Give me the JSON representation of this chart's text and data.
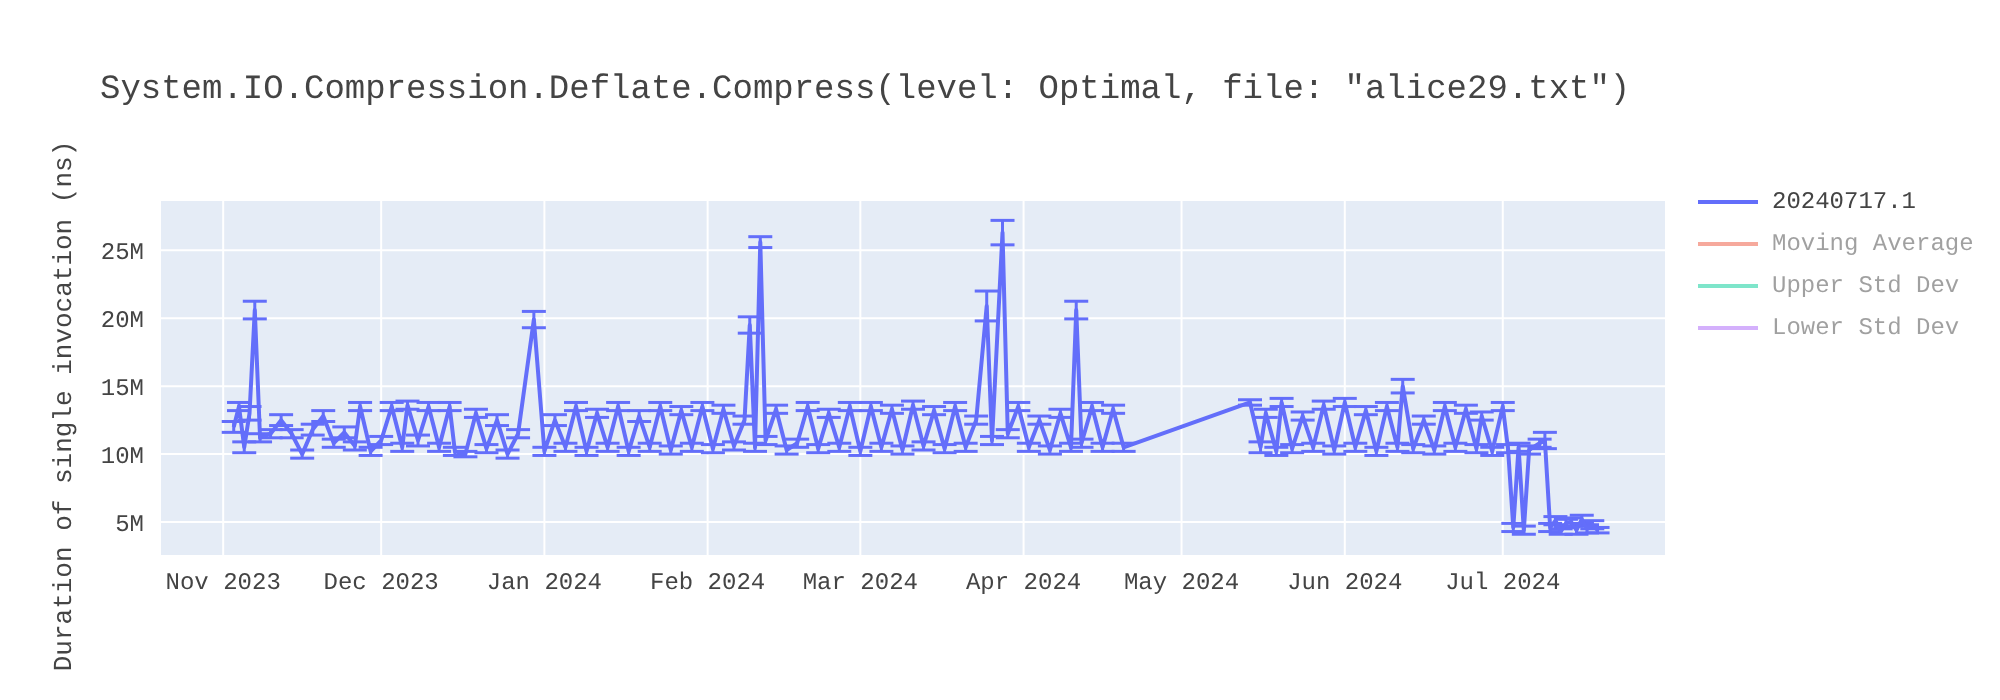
{
  "chart_data": {
    "type": "line",
    "title": "System.IO.Compression.Deflate.Compress(level: Optimal, file: \"alice29.txt\")",
    "ylabel": "Duration of single invocation (ns)",
    "x": [
      "2023-11-03",
      "2023-11-04",
      "2023-11-05",
      "2023-11-06",
      "2023-11-07",
      "2023-11-08",
      "2023-11-10",
      "2023-11-12",
      "2023-11-14",
      "2023-11-16",
      "2023-11-18",
      "2023-11-20",
      "2023-11-22",
      "2023-11-24",
      "2023-11-26",
      "2023-11-27",
      "2023-11-29",
      "2023-12-01",
      "2023-12-03",
      "2023-12-05",
      "2023-12-06",
      "2023-12-08",
      "2023-12-10",
      "2023-12-12",
      "2023-12-14",
      "2023-12-15",
      "2023-12-17",
      "2023-12-19",
      "2023-12-21",
      "2023-12-23",
      "2023-12-25",
      "2023-12-27",
      "2023-12-30",
      "2024-01-01",
      "2024-01-03",
      "2024-01-05",
      "2024-01-07",
      "2024-01-09",
      "2024-01-11",
      "2024-01-13",
      "2024-01-15",
      "2024-01-17",
      "2024-01-19",
      "2024-01-21",
      "2024-01-23",
      "2024-01-25",
      "2024-01-27",
      "2024-01-29",
      "2024-01-31",
      "2024-02-02",
      "2024-02-04",
      "2024-02-06",
      "2024-02-08",
      "2024-02-09",
      "2024-02-10",
      "2024-02-11",
      "2024-02-12",
      "2024-02-14",
      "2024-02-16",
      "2024-02-18",
      "2024-02-20",
      "2024-02-22",
      "2024-02-24",
      "2024-02-26",
      "2024-02-28",
      "2024-03-01",
      "2024-03-03",
      "2024-03-05",
      "2024-03-07",
      "2024-03-09",
      "2024-03-11",
      "2024-03-13",
      "2024-03-15",
      "2024-03-17",
      "2024-03-19",
      "2024-03-21",
      "2024-03-23",
      "2024-03-25",
      "2024-03-26",
      "2024-03-28",
      "2024-03-29",
      "2024-03-31",
      "2024-04-02",
      "2024-04-04",
      "2024-04-06",
      "2024-04-08",
      "2024-04-10",
      "2024-04-11",
      "2024-04-12",
      "2024-04-14",
      "2024-04-16",
      "2024-04-18",
      "2024-04-20",
      "2024-05-14",
      "2024-05-16",
      "2024-05-17",
      "2024-05-19",
      "2024-05-20",
      "2024-05-22",
      "2024-05-24",
      "2024-05-26",
      "2024-05-28",
      "2024-05-30",
      "2024-06-01",
      "2024-06-03",
      "2024-06-05",
      "2024-06-07",
      "2024-06-09",
      "2024-06-11",
      "2024-06-12",
      "2024-06-14",
      "2024-06-16",
      "2024-06-18",
      "2024-06-20",
      "2024-06-22",
      "2024-06-24",
      "2024-06-26",
      "2024-06-27",
      "2024-06-29",
      "2024-07-01",
      "2024-07-02",
      "2024-07-03",
      "2024-07-04",
      "2024-07-05",
      "2024-07-06",
      "2024-07-08",
      "2024-07-09",
      "2024-07-10",
      "2024-07-11",
      "2024-07-12",
      "2024-07-13",
      "2024-07-14",
      "2024-07-15",
      "2024-07-16",
      "2024-07-17",
      "2024-07-18",
      "2024-07-19"
    ],
    "series": [
      {
        "name": "20240717.1",
        "color": "#636efa",
        "values": [
          12000000,
          13500000,
          10500000,
          13000000,
          20600000,
          11200000,
          11500000,
          12500000,
          11500000,
          10000000,
          11800000,
          12800000,
          10800000,
          11600000,
          10600000,
          13500000,
          10200000,
          11000000,
          13500000,
          10500000,
          13600000,
          11000000,
          13500000,
          10500000,
          13500000,
          10200000,
          10000000,
          13000000,
          10400000,
          12500000,
          10000000,
          11500000,
          19900000,
          10200000,
          12500000,
          10500000,
          13500000,
          10200000,
          13000000,
          10500000,
          13500000,
          10200000,
          12800000,
          10500000,
          13500000,
          10300000,
          13200000,
          10500000,
          13500000,
          10400000,
          13300000,
          10600000,
          12500000,
          19500000,
          10500000,
          25600000,
          11000000,
          13300000,
          10300000,
          10800000,
          13500000,
          10400000,
          13000000,
          10500000,
          13500000,
          10200000,
          13500000,
          10500000,
          13300000,
          10300000,
          13600000,
          10600000,
          13200000,
          10400000,
          13500000,
          10500000,
          12500000,
          20900000,
          11000000,
          26300000,
          11500000,
          13500000,
          10500000,
          12500000,
          10300000,
          13000000,
          10500000,
          20600000,
          10800000,
          13500000,
          10500000,
          13300000,
          10500000,
          13800000,
          10500000,
          13000000,
          10200000,
          13800000,
          10400000,
          12800000,
          10500000,
          13600000,
          10300000,
          13800000,
          10500000,
          13200000,
          10200000,
          13500000,
          10500000,
          15000000,
          10400000,
          12500000,
          10300000,
          13500000,
          10500000,
          13300000,
          10400000,
          12800000,
          10200000,
          13500000,
          10400000,
          4600000,
          10500000,
          4400000,
          10300000,
          10800000,
          11000000,
          4600000,
          5100000,
          4300000,
          4900000,
          5000000,
          4400000,
          5200000,
          4500000,
          4800000,
          4400000
        ],
        "errors": [
          400000,
          300000,
          400000,
          500000,
          650000,
          300000,
          300000,
          400000,
          300000,
          300000,
          400000,
          400000,
          300000,
          400000,
          300000,
          300000,
          300000,
          300000,
          300000,
          300000,
          300000,
          400000,
          300000,
          300000,
          300000,
          300000,
          200000,
          300000,
          300000,
          400000,
          300000,
          300000,
          600000,
          300000,
          400000,
          300000,
          300000,
          300000,
          300000,
          300000,
          300000,
          300000,
          400000,
          300000,
          300000,
          300000,
          300000,
          300000,
          300000,
          300000,
          300000,
          300000,
          300000,
          600000,
          300000,
          400000,
          300000,
          300000,
          300000,
          300000,
          300000,
          300000,
          300000,
          300000,
          300000,
          300000,
          300000,
          300000,
          300000,
          300000,
          300000,
          300000,
          300000,
          300000,
          300000,
          300000,
          300000,
          1100000,
          300000,
          900000,
          300000,
          300000,
          300000,
          300000,
          300000,
          300000,
          300000,
          650000,
          300000,
          300000,
          300000,
          300000,
          300000,
          200000,
          400000,
          300000,
          300000,
          300000,
          300000,
          300000,
          300000,
          300000,
          300000,
          300000,
          300000,
          300000,
          300000,
          300000,
          300000,
          500000,
          300000,
          300000,
          300000,
          300000,
          300000,
          300000,
          300000,
          300000,
          300000,
          300000,
          300000,
          300000,
          300000,
          300000,
          300000,
          300000,
          600000,
          300000,
          300000,
          200000,
          300000,
          300000,
          300000,
          300000,
          300000,
          300000,
          200000
        ]
      },
      {
        "name": "Moving Average",
        "color": "#ef553b",
        "values": [
          null,
          null,
          null,
          null,
          null,
          null,
          null,
          null,
          null,
          null,
          null,
          null,
          null,
          null,
          null,
          null,
          null,
          null,
          null,
          null,
          null,
          null,
          null,
          null,
          null,
          null,
          null,
          null,
          null,
          null,
          null,
          null,
          null,
          null,
          null,
          null,
          null,
          null,
          null,
          null,
          null,
          null,
          null,
          null,
          null,
          null,
          null,
          null,
          null,
          null,
          null,
          null,
          null,
          null,
          null,
          null,
          null,
          null,
          null,
          null,
          null,
          null,
          null,
          null,
          null,
          null,
          null,
          null,
          null,
          null,
          null,
          null,
          null,
          null,
          null,
          null,
          null,
          null,
          null,
          null,
          null,
          null,
          null,
          null,
          null,
          null,
          null,
          null,
          null,
          null,
          null,
          null,
          null,
          null,
          null,
          null,
          null,
          null,
          null,
          null,
          null,
          null,
          null,
          null,
          null,
          null,
          null,
          null,
          null,
          null,
          null,
          null,
          null,
          null,
          null,
          null,
          null,
          null,
          null,
          null,
          null,
          null,
          null,
          null,
          null,
          null,
          null,
          null,
          null,
          null,
          null,
          null,
          null,
          null,
          null,
          null,
          null
        ]
      },
      {
        "name": "Upper Std Dev",
        "color": "#00cc96",
        "values": [
          null,
          null,
          null,
          null,
          null,
          null,
          null,
          null,
          null,
          null,
          null,
          null,
          null,
          null,
          null,
          null,
          null,
          null,
          null,
          null,
          null,
          null,
          null,
          null,
          null,
          null,
          null,
          null,
          null,
          null,
          null,
          null,
          null,
          null,
          null,
          null,
          null,
          null,
          null,
          null,
          null,
          null,
          null,
          null,
          null,
          null,
          null,
          null,
          null,
          null,
          null,
          null,
          null,
          null,
          null,
          null,
          null,
          null,
          null,
          null,
          null,
          null,
          null,
          null,
          null,
          null,
          null,
          null,
          null,
          null,
          null,
          null,
          null,
          null,
          null,
          null,
          null,
          null,
          null,
          null,
          null,
          null,
          null,
          null,
          null,
          null,
          null,
          null,
          null,
          null,
          null,
          null,
          null,
          null,
          null,
          null,
          null,
          null,
          null,
          null,
          null,
          null,
          null,
          null,
          null,
          null,
          null,
          null,
          null,
          null,
          null,
          null,
          null,
          null,
          null,
          null,
          null,
          null,
          null,
          null,
          null,
          null,
          null,
          null,
          null,
          null,
          null,
          null,
          null,
          null,
          null,
          null,
          null,
          null,
          null,
          null,
          null
        ]
      },
      {
        "name": "Lower Std Dev",
        "color": "#ab63fa",
        "values": [
          null,
          null,
          null,
          null,
          null,
          null,
          null,
          null,
          null,
          null,
          null,
          null,
          null,
          null,
          null,
          null,
          null,
          null,
          null,
          null,
          null,
          null,
          null,
          null,
          null,
          null,
          null,
          null,
          null,
          null,
          null,
          null,
          null,
          null,
          null,
          null,
          null,
          null,
          null,
          null,
          null,
          null,
          null,
          null,
          null,
          null,
          null,
          null,
          null,
          null,
          null,
          null,
          null,
          null,
          null,
          null,
          null,
          null,
          null,
          null,
          null,
          null,
          null,
          null,
          null,
          null,
          null,
          null,
          null,
          null,
          null,
          null,
          null,
          null,
          null,
          null,
          null,
          null,
          null,
          null,
          null,
          null,
          null,
          null,
          null,
          null,
          null,
          null,
          null,
          null,
          null,
          null,
          null,
          null,
          null,
          null,
          null,
          null,
          null,
          null,
          null,
          null,
          null,
          null,
          null,
          null,
          null,
          null,
          null,
          null,
          null,
          null,
          null,
          null,
          null,
          null,
          null,
          null,
          null,
          null,
          null,
          null,
          null,
          null,
          null,
          null,
          null,
          null,
          null,
          null,
          null,
          null,
          null,
          null,
          null,
          null,
          null
        ]
      }
    ],
    "xlim": [
      "2023-10-20",
      "2024-08-01"
    ],
    "xticks": [
      {
        "value": "2023-11-01",
        "label": "Nov 2023"
      },
      {
        "value": "2023-12-01",
        "label": "Dec 2023"
      },
      {
        "value": "2024-01-01",
        "label": "Jan 2024"
      },
      {
        "value": "2024-02-01",
        "label": "Feb 2024"
      },
      {
        "value": "2024-03-01",
        "label": "Mar 2024"
      },
      {
        "value": "2024-04-01",
        "label": "Apr 2024"
      },
      {
        "value": "2024-05-01",
        "label": "May 2024"
      },
      {
        "value": "2024-06-01",
        "label": "Jun 2024"
      },
      {
        "value": "2024-07-01",
        "label": "Jul 2024"
      }
    ],
    "ylim": [
      2500000,
      28700000
    ],
    "yticks": [
      {
        "value": 5000000,
        "label": "5M"
      },
      {
        "value": 10000000,
        "label": "10M"
      },
      {
        "value": 15000000,
        "label": "15M"
      },
      {
        "value": 20000000,
        "label": "20M"
      },
      {
        "value": 25000000,
        "label": "25M"
      }
    ],
    "grid": true,
    "legend": "right",
    "marker": "none",
    "line_style": "solid"
  }
}
